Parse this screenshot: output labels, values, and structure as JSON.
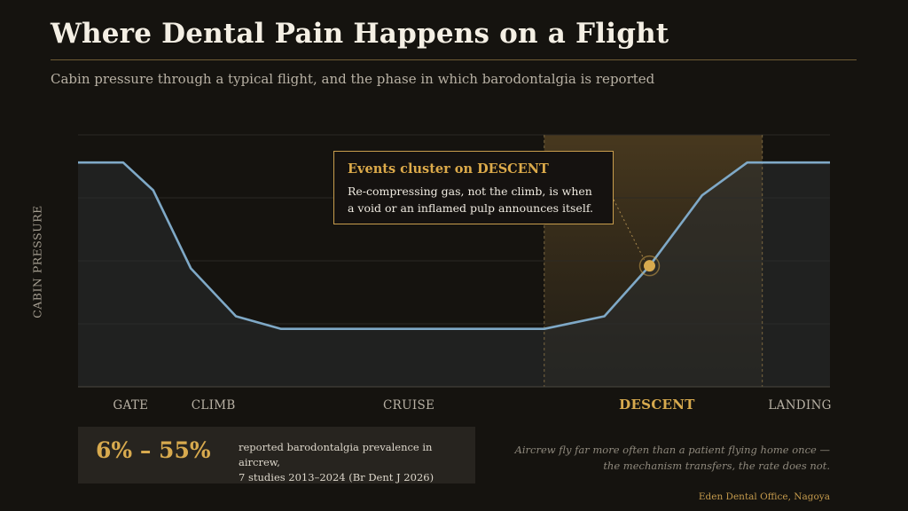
{
  "header": {
    "title": "Where Dental Pain Happens on a Flight",
    "subtitle": "Cabin pressure through a typical flight, and the phase in which barodontalgia is reported"
  },
  "chart_data": {
    "type": "line",
    "ylabel": "CABIN PRESSURE",
    "xlabel": "",
    "grid": true,
    "phases": [
      {
        "label": "GATE",
        "x": 7
      },
      {
        "label": "CLIMB",
        "x": 18
      },
      {
        "label": "CRUISE",
        "x": 44
      },
      {
        "label": "DESCENT",
        "x": 77,
        "highlight": true
      },
      {
        "label": "LANDING",
        "x": 96
      }
    ],
    "highlight_range": [
      62,
      91
    ],
    "xlim": [
      0,
      100
    ],
    "ylim": [
      0,
      100
    ],
    "series": [
      {
        "points": [
          [
            0,
            89
          ],
          [
            6,
            89
          ],
          [
            10,
            78
          ],
          [
            15,
            47
          ],
          [
            21,
            28
          ],
          [
            27,
            23
          ],
          [
            62,
            23
          ],
          [
            70,
            28
          ],
          [
            76,
            48
          ],
          [
            83,
            76
          ],
          [
            89,
            89
          ],
          [
            100,
            89
          ]
        ]
      }
    ],
    "marker": {
      "x": 76,
      "y": 48
    },
    "colors": {
      "line": "#7fa9c7",
      "accent": "#d8aa4e"
    }
  },
  "callout": {
    "title": "Events cluster on DESCENT",
    "body": "Re-compressing gas, not the climb, is when a void or an inflamed pulp announces itself."
  },
  "stat": {
    "value": "6% – 55%",
    "line1": "reported barodontalgia prevalence in aircrew,",
    "line2": "7 studies 2013–2024 (Br Dent J 2026)"
  },
  "quote": {
    "line1": "Aircrew fly far more often than a patient flying home once —",
    "line2": "the mechanism transfers, the rate does not."
  },
  "credit": "Eden Dental Office, Nagoya"
}
